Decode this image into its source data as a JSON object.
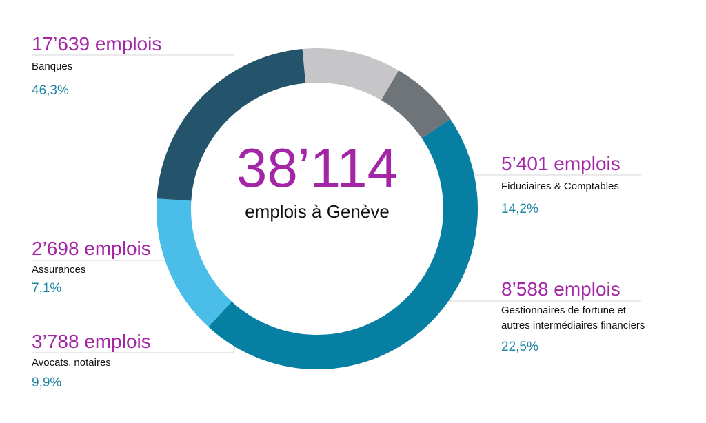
{
  "chart_data": {
    "type": "pie",
    "style": "donut",
    "center": {
      "total": "38’114",
      "subtitle": "emplois à Genève"
    },
    "slices": [
      {
        "category": "Banques",
        "count": "17’639 emplois",
        "value": 17639,
        "percent": "46,3%",
        "color": "#077fa3"
      },
      {
        "category": "Fiduciaires & Comptables",
        "count": "5’401 emplois",
        "value": 5401,
        "percent": "14,2%",
        "color": "#4abde9"
      },
      {
        "category_lines": [
          "Gestionnaires de fortune et",
          "autres intermédiaires financiers"
        ],
        "count": "8’588 emplois",
        "value": 8588,
        "percent": "22,5%",
        "color": "#24546b"
      },
      {
        "category": "Avocats, notaires",
        "count": "3’788 emplois",
        "value": 3788,
        "percent": "9,9%",
        "color": "#c6c6c8"
      },
      {
        "category": "Assurances",
        "count": "2’698 emplois",
        "value": 2698,
        "percent": "7,1%",
        "color": "#6f7478"
      }
    ]
  }
}
